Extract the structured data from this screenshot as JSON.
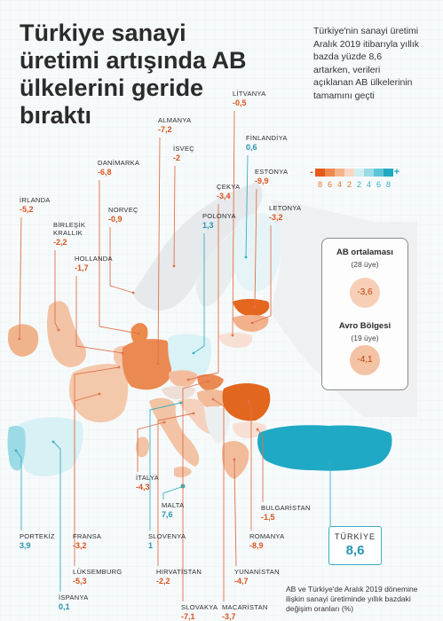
{
  "headline": "Türkiye sanayi üretimi artışında AB ülkelerini geride bıraktı",
  "intro": "Türkiye'nin sanayi üretimi Aralık 2019 itibarıyla yıllık bazda yüzde 8,6 artarken, verileri açıklanan AB ülkelerinin tamamını geçti",
  "legend": {
    "minus": "-",
    "plus": "+",
    "ticks": [
      "8",
      "6",
      "4",
      "2",
      "2",
      "4",
      "6",
      "8"
    ],
    "colors": [
      "#e35a1a",
      "#ef8a4f",
      "#f5b38c",
      "#f9d7c2",
      "#cfeef3",
      "#9adbe6",
      "#5cc6d8",
      "#22a9c2"
    ]
  },
  "averages": {
    "eu": {
      "title": "AB ortalaması",
      "members": "(28 üye)",
      "value": "-3,6"
    },
    "euro": {
      "title": "Avro Bölgesi",
      "members": "(19 üye)",
      "value": "-4,1"
    }
  },
  "countries": [
    {
      "id": "litvanya",
      "name": "LİTVANYA",
      "value": "-0,5",
      "sign": "neg"
    },
    {
      "id": "almanya",
      "name": "ALMANYA",
      "value": "-7,2",
      "sign": "neg"
    },
    {
      "id": "finlandiya",
      "name": "FİNLANDİYA",
      "value": "0,6",
      "sign": "pos"
    },
    {
      "id": "isvec",
      "name": "İSVEÇ",
      "value": "-2",
      "sign": "neg"
    },
    {
      "id": "danimarka",
      "name": "DANİMARKA",
      "value": "-6,8",
      "sign": "neg"
    },
    {
      "id": "estonya",
      "name": "ESTONYA",
      "value": "-9,9",
      "sign": "neg"
    },
    {
      "id": "cekya",
      "name": "ÇEKYA",
      "value": "-3,4",
      "sign": "neg"
    },
    {
      "id": "irlanda",
      "name": "İRLANDA",
      "value": "-5,2",
      "sign": "neg"
    },
    {
      "id": "letonya",
      "name": "LETONYA",
      "value": "-3,2",
      "sign": "neg"
    },
    {
      "id": "norvec",
      "name": "NORVEÇ",
      "value": "-0,9",
      "sign": "neg"
    },
    {
      "id": "polonya",
      "name": "POLONYA",
      "value": "1,3",
      "sign": "pos"
    },
    {
      "id": "birlesik_krallik",
      "name": "BİRLEŞİK\nKRALLIK",
      "value": "-2,2",
      "sign": "neg"
    },
    {
      "id": "hollanda",
      "name": "HOLLANDA",
      "value": "-1,7",
      "sign": "neg"
    },
    {
      "id": "italya",
      "name": "İTALYA",
      "value": "-4,3",
      "sign": "neg"
    },
    {
      "id": "malta",
      "name": "MALTA",
      "value": "7,6",
      "sign": "pos"
    },
    {
      "id": "bulgaristan",
      "name": "BULGARİSTAN",
      "value": "-1,5",
      "sign": "neg"
    },
    {
      "id": "portekiz",
      "name": "PORTEKİZ",
      "value": "3,9",
      "sign": "pos"
    },
    {
      "id": "fransa",
      "name": "FRANSA",
      "value": "-3,2",
      "sign": "neg"
    },
    {
      "id": "slovenya",
      "name": "SLOVENYA",
      "value": "1",
      "sign": "pos"
    },
    {
      "id": "romanya",
      "name": "ROMANYA",
      "value": "-8,9",
      "sign": "neg"
    },
    {
      "id": "luksemburg",
      "name": "LÜKSEMBURG",
      "value": "-5,3",
      "sign": "neg"
    },
    {
      "id": "hirvatistan",
      "name": "HIRVATİSTAN",
      "value": "-2,2",
      "sign": "neg"
    },
    {
      "id": "yunanistan",
      "name": "YUNANİSTAN",
      "value": "-4,7",
      "sign": "neg"
    },
    {
      "id": "ispanya",
      "name": "İSPANYA",
      "value": "0,1",
      "sign": "pos"
    },
    {
      "id": "slovakya",
      "name": "SLOVAKYA",
      "value": "-7,1",
      "sign": "neg"
    },
    {
      "id": "macaristan",
      "name": "MACARİSTAN",
      "value": "-3,7",
      "sign": "neg"
    }
  ],
  "turkey": {
    "name": "TÜRKİYE",
    "value": "8,6"
  },
  "footnote": "AB ve Türkiye'de Aralık 2019 dönemine ilişkin sanayi üretiminde yıllık bazdaki değişim oranları (%)"
}
